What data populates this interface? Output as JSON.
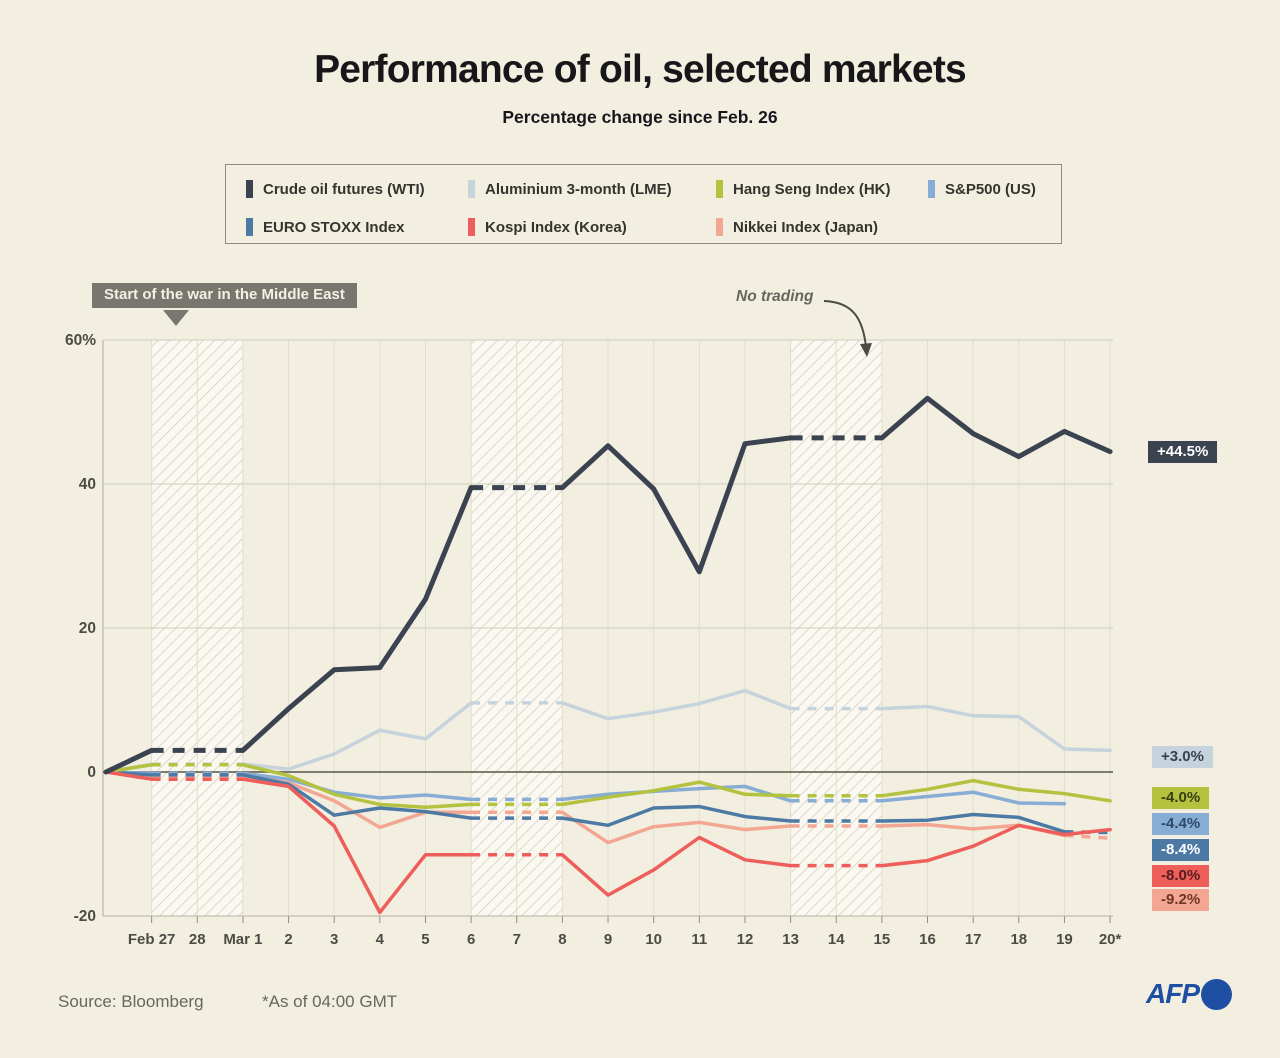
{
  "title": "Performance of oil, selected markets",
  "subtitle": "Percentage change since Feb. 26",
  "annotations": {
    "war": "Start of the war in the Middle East",
    "no_trading": "No trading"
  },
  "footer": {
    "source": "Source: Bloomberg",
    "as_of": "*As of 04:00 GMT",
    "logo": "AFP"
  },
  "colors": {
    "background": "#f2efe1",
    "zero_line": "#6c6c5c",
    "grid": "#d8d6c4",
    "afp_blue": "#1f4fa3"
  },
  "chart_data": {
    "type": "line",
    "title": "Performance of oil, selected markets",
    "subtitle": "Percentage change since Feb. 26",
    "baseline": {
      "label": "Feb 26",
      "value": 0
    },
    "x_labels": [
      "Feb 27",
      "28",
      "Mar 1",
      "2",
      "3",
      "4",
      "5",
      "6",
      "7",
      "8",
      "9",
      "10",
      "11",
      "12",
      "13",
      "14",
      "15",
      "16",
      "17",
      "18",
      "19",
      "20*"
    ],
    "yticks": [
      {
        "v": 60,
        "label": "60%"
      },
      {
        "v": 40,
        "label": "40"
      },
      {
        "v": 20,
        "label": "20"
      },
      {
        "v": 0,
        "label": "0"
      },
      {
        "v": -20,
        "label": "-20"
      }
    ],
    "ylim": [
      -20,
      60
    ],
    "no_trading_bands": [
      [
        1,
        3
      ],
      [
        8,
        10
      ],
      [
        15,
        17
      ]
    ],
    "series": [
      {
        "key": "wti",
        "name": "Crude oil futures (WTI)",
        "color": "#3b4250",
        "end_label": "+44.5%",
        "chip_text": "#ffffff",
        "dash_last": false,
        "values": [
          0,
          3,
          3,
          3,
          8.8,
          14.2,
          14.5,
          24,
          39.5,
          39.5,
          39.5,
          45.3,
          39.3,
          27.8,
          45.6,
          46.4,
          46.4,
          46.4,
          51.9,
          47,
          43.8,
          47.3,
          44.5
        ]
      },
      {
        "key": "aluminium",
        "name": "Aluminium 3-month (LME)",
        "color": "#c6d3dd",
        "end_label": "+3.0%",
        "chip_text": "#33434f",
        "dash_last": false,
        "values": [
          0,
          1.1,
          1.1,
          1.1,
          0.4,
          2.5,
          5.8,
          4.6,
          9.6,
          9.6,
          9.6,
          7.4,
          8.3,
          9.5,
          11.3,
          8.8,
          8.8,
          8.8,
          9.1,
          7.8,
          7.7,
          3.2,
          3.0
        ]
      },
      {
        "key": "hangseng",
        "name": "Hang Seng Index (HK)",
        "color": "#b3c23f",
        "end_label": "-4.0%",
        "chip_text": "#3a3d13",
        "dash_last": false,
        "values": [
          0,
          1.0,
          1.0,
          1.0,
          -0.5,
          -3.1,
          -4.5,
          -4.9,
          -4.5,
          -4.5,
          -4.5,
          -3.5,
          -2.6,
          -1.4,
          -3.1,
          -3.3,
          -3.3,
          -3.3,
          -2.4,
          -1.2,
          -2.4,
          -3.0,
          -4.0
        ]
      },
      {
        "key": "sp500",
        "name": "S&P500 (US)",
        "color": "#87add5",
        "end_label": "-4.4%",
        "chip_text": "#2d4a6b",
        "dash_last": false,
        "values": [
          0,
          -0.2,
          -0.2,
          -0.2,
          -1.0,
          -2.8,
          -3.6,
          -3.2,
          -3.8,
          -3.8,
          -3.8,
          -3.1,
          -2.7,
          -2.3,
          -2.0,
          -4.0,
          -4.0,
          -4.0,
          -3.4,
          -2.8,
          -4.3,
          -4.4,
          null
        ]
      },
      {
        "key": "eurostoxx",
        "name": "EURO STOXX Index",
        "color": "#4d7aa4",
        "end_label": "-8.4%",
        "chip_text": "#ffffff",
        "dash_last": true,
        "values": [
          0,
          -0.4,
          -0.4,
          -0.4,
          -1.7,
          -6.0,
          -5.0,
          -5.5,
          -6.4,
          -6.4,
          -6.4,
          -7.4,
          -5.0,
          -4.8,
          -6.2,
          -6.8,
          -6.8,
          -6.8,
          -6.7,
          -5.9,
          -6.3,
          -8.3,
          -8.4
        ]
      },
      {
        "key": "kospi",
        "name": "Kospi Index (Korea)",
        "color": "#ee5e5a",
        "end_label": "-8.0%",
        "chip_text": "#571d1d",
        "dash_last": false,
        "values": [
          0,
          -1.0,
          -1.0,
          -1.0,
          -2.0,
          -7.5,
          -19.5,
          -11.5,
          -11.5,
          -11.5,
          -11.5,
          -17.1,
          -13.6,
          -9.1,
          -12.2,
          -13.0,
          -13.0,
          -13.0,
          -12.3,
          -10.3,
          -7.4,
          -8.7,
          -8.0
        ]
      },
      {
        "key": "nikkei",
        "name": "Nikkei Index (Japan)",
        "color": "#f3a793",
        "end_label": "-9.2%",
        "chip_text": "#6d3526",
        "dash_last": true,
        "values": [
          0,
          -0.6,
          -0.6,
          -0.6,
          -1.5,
          -4.0,
          -7.7,
          -5.6,
          -5.6,
          -5.6,
          -5.6,
          -9.8,
          -7.6,
          -7.0,
          -8.0,
          -7.5,
          -7.5,
          -7.5,
          -7.3,
          -7.9,
          -7.4,
          -8.8,
          -9.2
        ]
      }
    ]
  }
}
